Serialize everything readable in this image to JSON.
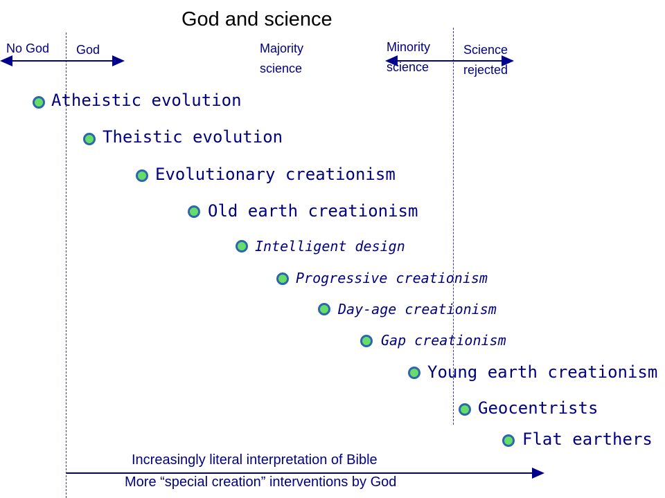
{
  "title": "God and science",
  "headers": {
    "no_god": "No God",
    "god": "God",
    "majority_l1": "Majority",
    "majority_l2": "science",
    "minority_l1": "Minority",
    "minority_l2": "science",
    "rejected_l1": "Science",
    "rejected_l2": "rejected"
  },
  "positions": [
    "Atheistic evolution",
    "Theistic evolution",
    "Evolutionary creationism",
    "Old earth creationism",
    "Intelligent design",
    "Progressive creationism",
    "Day-age creationism",
    "Gap creationism",
    "Young earth creationism",
    "Geocentrists",
    "Flat earthers"
  ],
  "footer": {
    "line1": "Increasingly literal interpretation of Bible",
    "line2": "More “special creation” interventions by God"
  },
  "colors": {
    "text": "#000080",
    "bullet_fill": "#66dd66",
    "bullet_ring": "#2c66b0",
    "arrow": "#00008b"
  }
}
